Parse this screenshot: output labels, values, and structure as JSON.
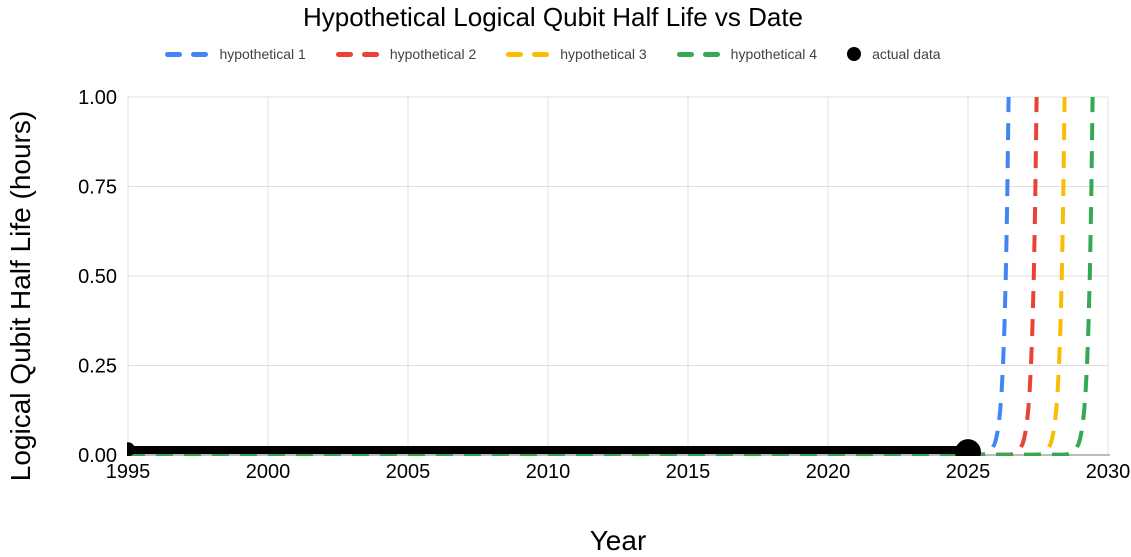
{
  "chart": {
    "title": "Hypothetical Logical Qubit Half Life vs Date",
    "xlabel": "Year",
    "ylabel": "Logical Qubit Half Life (hours)"
  },
  "colors": {
    "hypothetical_1": "#4285F4",
    "hypothetical_2": "#EA4335",
    "hypothetical_3": "#FBBC04",
    "hypothetical_4": "#34A853",
    "actual_data": "#000000",
    "gridline": "#E0E0E0",
    "axis_line": "#787878",
    "tick_text": "#000000",
    "legend_text": "#424242"
  },
  "legend": [
    {
      "label": "hypothetical 1",
      "color": "#4285F4",
      "marker": "dashes"
    },
    {
      "label": "hypothetical 2",
      "color": "#EA4335",
      "marker": "dashes"
    },
    {
      "label": "hypothetical 3",
      "color": "#FBBC04",
      "marker": "dashes"
    },
    {
      "label": "hypothetical 4",
      "color": "#34A853",
      "marker": "dashes"
    },
    {
      "label": "actual data",
      "color": "#000000",
      "marker": "circle"
    }
  ],
  "chart_data": {
    "type": "line",
    "title": "Hypothetical Logical Qubit Half Life vs Date",
    "xlabel": "Year",
    "ylabel": "Logical Qubit Half Life (hours)",
    "xlim": [
      1995,
      2030
    ],
    "ylim": [
      0,
      1
    ],
    "xticks": [
      1995,
      2000,
      2005,
      2010,
      2015,
      2020,
      2025,
      2030
    ],
    "xtick_labels": [
      "1995",
      "2000",
      "2005",
      "2010",
      "2015",
      "2020",
      "2025",
      "2030"
    ],
    "yticks": [
      0,
      0.25,
      0.5,
      0.75,
      1
    ],
    "ytick_labels": [
      "0.00",
      "0.25",
      "0.50",
      "0.75",
      "1.00"
    ],
    "grid": true,
    "legend_position": "top",
    "series": [
      {
        "name": "hypothetical 1",
        "color": "#4285F4",
        "style": "dashed",
        "width": 4,
        "points": [
          [
            1995,
            0
          ],
          [
            2020,
            0
          ],
          [
            2025.45,
            0.001
          ],
          [
            2025.55,
            0.002
          ],
          [
            2025.65,
            0.004
          ],
          [
            2025.75,
            0.008
          ],
          [
            2025.85,
            0.016
          ],
          [
            2025.95,
            0.031
          ],
          [
            2026.0,
            0.044
          ],
          [
            2026.05,
            0.063
          ],
          [
            2026.1,
            0.088
          ],
          [
            2026.15,
            0.125
          ],
          [
            2026.2,
            0.177
          ],
          [
            2026.25,
            0.25
          ],
          [
            2026.3,
            0.354
          ],
          [
            2026.35,
            0.5
          ],
          [
            2026.4,
            0.707
          ],
          [
            2026.45,
            1.0
          ]
        ]
      },
      {
        "name": "hypothetical 2",
        "color": "#EA4335",
        "style": "dashed",
        "width": 4,
        "points": [
          [
            1995,
            0
          ],
          [
            2021,
            0
          ],
          [
            2026.45,
            0.001
          ],
          [
            2026.55,
            0.002
          ],
          [
            2026.65,
            0.004
          ],
          [
            2026.75,
            0.008
          ],
          [
            2026.85,
            0.016
          ],
          [
            2026.95,
            0.031
          ],
          [
            2027.0,
            0.044
          ],
          [
            2027.05,
            0.063
          ],
          [
            2027.1,
            0.088
          ],
          [
            2027.15,
            0.125
          ],
          [
            2027.2,
            0.177
          ],
          [
            2027.25,
            0.25
          ],
          [
            2027.3,
            0.354
          ],
          [
            2027.35,
            0.5
          ],
          [
            2027.4,
            0.707
          ],
          [
            2027.45,
            1.0
          ]
        ]
      },
      {
        "name": "hypothetical 3",
        "color": "#FBBC04",
        "style": "dashed",
        "width": 4,
        "points": [
          [
            1995,
            0
          ],
          [
            2022,
            0
          ],
          [
            2027.45,
            0.001
          ],
          [
            2027.55,
            0.002
          ],
          [
            2027.65,
            0.004
          ],
          [
            2027.75,
            0.008
          ],
          [
            2027.85,
            0.016
          ],
          [
            2027.95,
            0.031
          ],
          [
            2028.0,
            0.044
          ],
          [
            2028.05,
            0.063
          ],
          [
            2028.1,
            0.088
          ],
          [
            2028.15,
            0.125
          ],
          [
            2028.2,
            0.177
          ],
          [
            2028.25,
            0.25
          ],
          [
            2028.3,
            0.354
          ],
          [
            2028.35,
            0.5
          ],
          [
            2028.4,
            0.707
          ],
          [
            2028.45,
            1.0
          ]
        ]
      },
      {
        "name": "hypothetical 4",
        "color": "#34A853",
        "style": "dashed",
        "width": 4,
        "points": [
          [
            1995,
            0
          ],
          [
            2023,
            0
          ],
          [
            2028.45,
            0.001
          ],
          [
            2028.55,
            0.002
          ],
          [
            2028.65,
            0.004
          ],
          [
            2028.75,
            0.008
          ],
          [
            2028.85,
            0.016
          ],
          [
            2028.95,
            0.031
          ],
          [
            2029.0,
            0.044
          ],
          [
            2029.05,
            0.063
          ],
          [
            2029.1,
            0.088
          ],
          [
            2029.15,
            0.125
          ],
          [
            2029.2,
            0.177
          ],
          [
            2029.25,
            0.25
          ],
          [
            2029.3,
            0.354
          ],
          [
            2029.35,
            0.5
          ],
          [
            2029.4,
            0.707
          ],
          [
            2029.45,
            1.0
          ]
        ]
      },
      {
        "name": "actual data",
        "color": "#000000",
        "style": "solid",
        "width": 8,
        "points": [
          [
            1995,
            0.014
          ],
          [
            2025,
            0.014
          ]
        ],
        "markers": [
          {
            "x": 1995,
            "y": 0.016,
            "r": 7
          },
          {
            "x": 2025,
            "y": 0.008,
            "r": 13
          }
        ]
      }
    ]
  }
}
